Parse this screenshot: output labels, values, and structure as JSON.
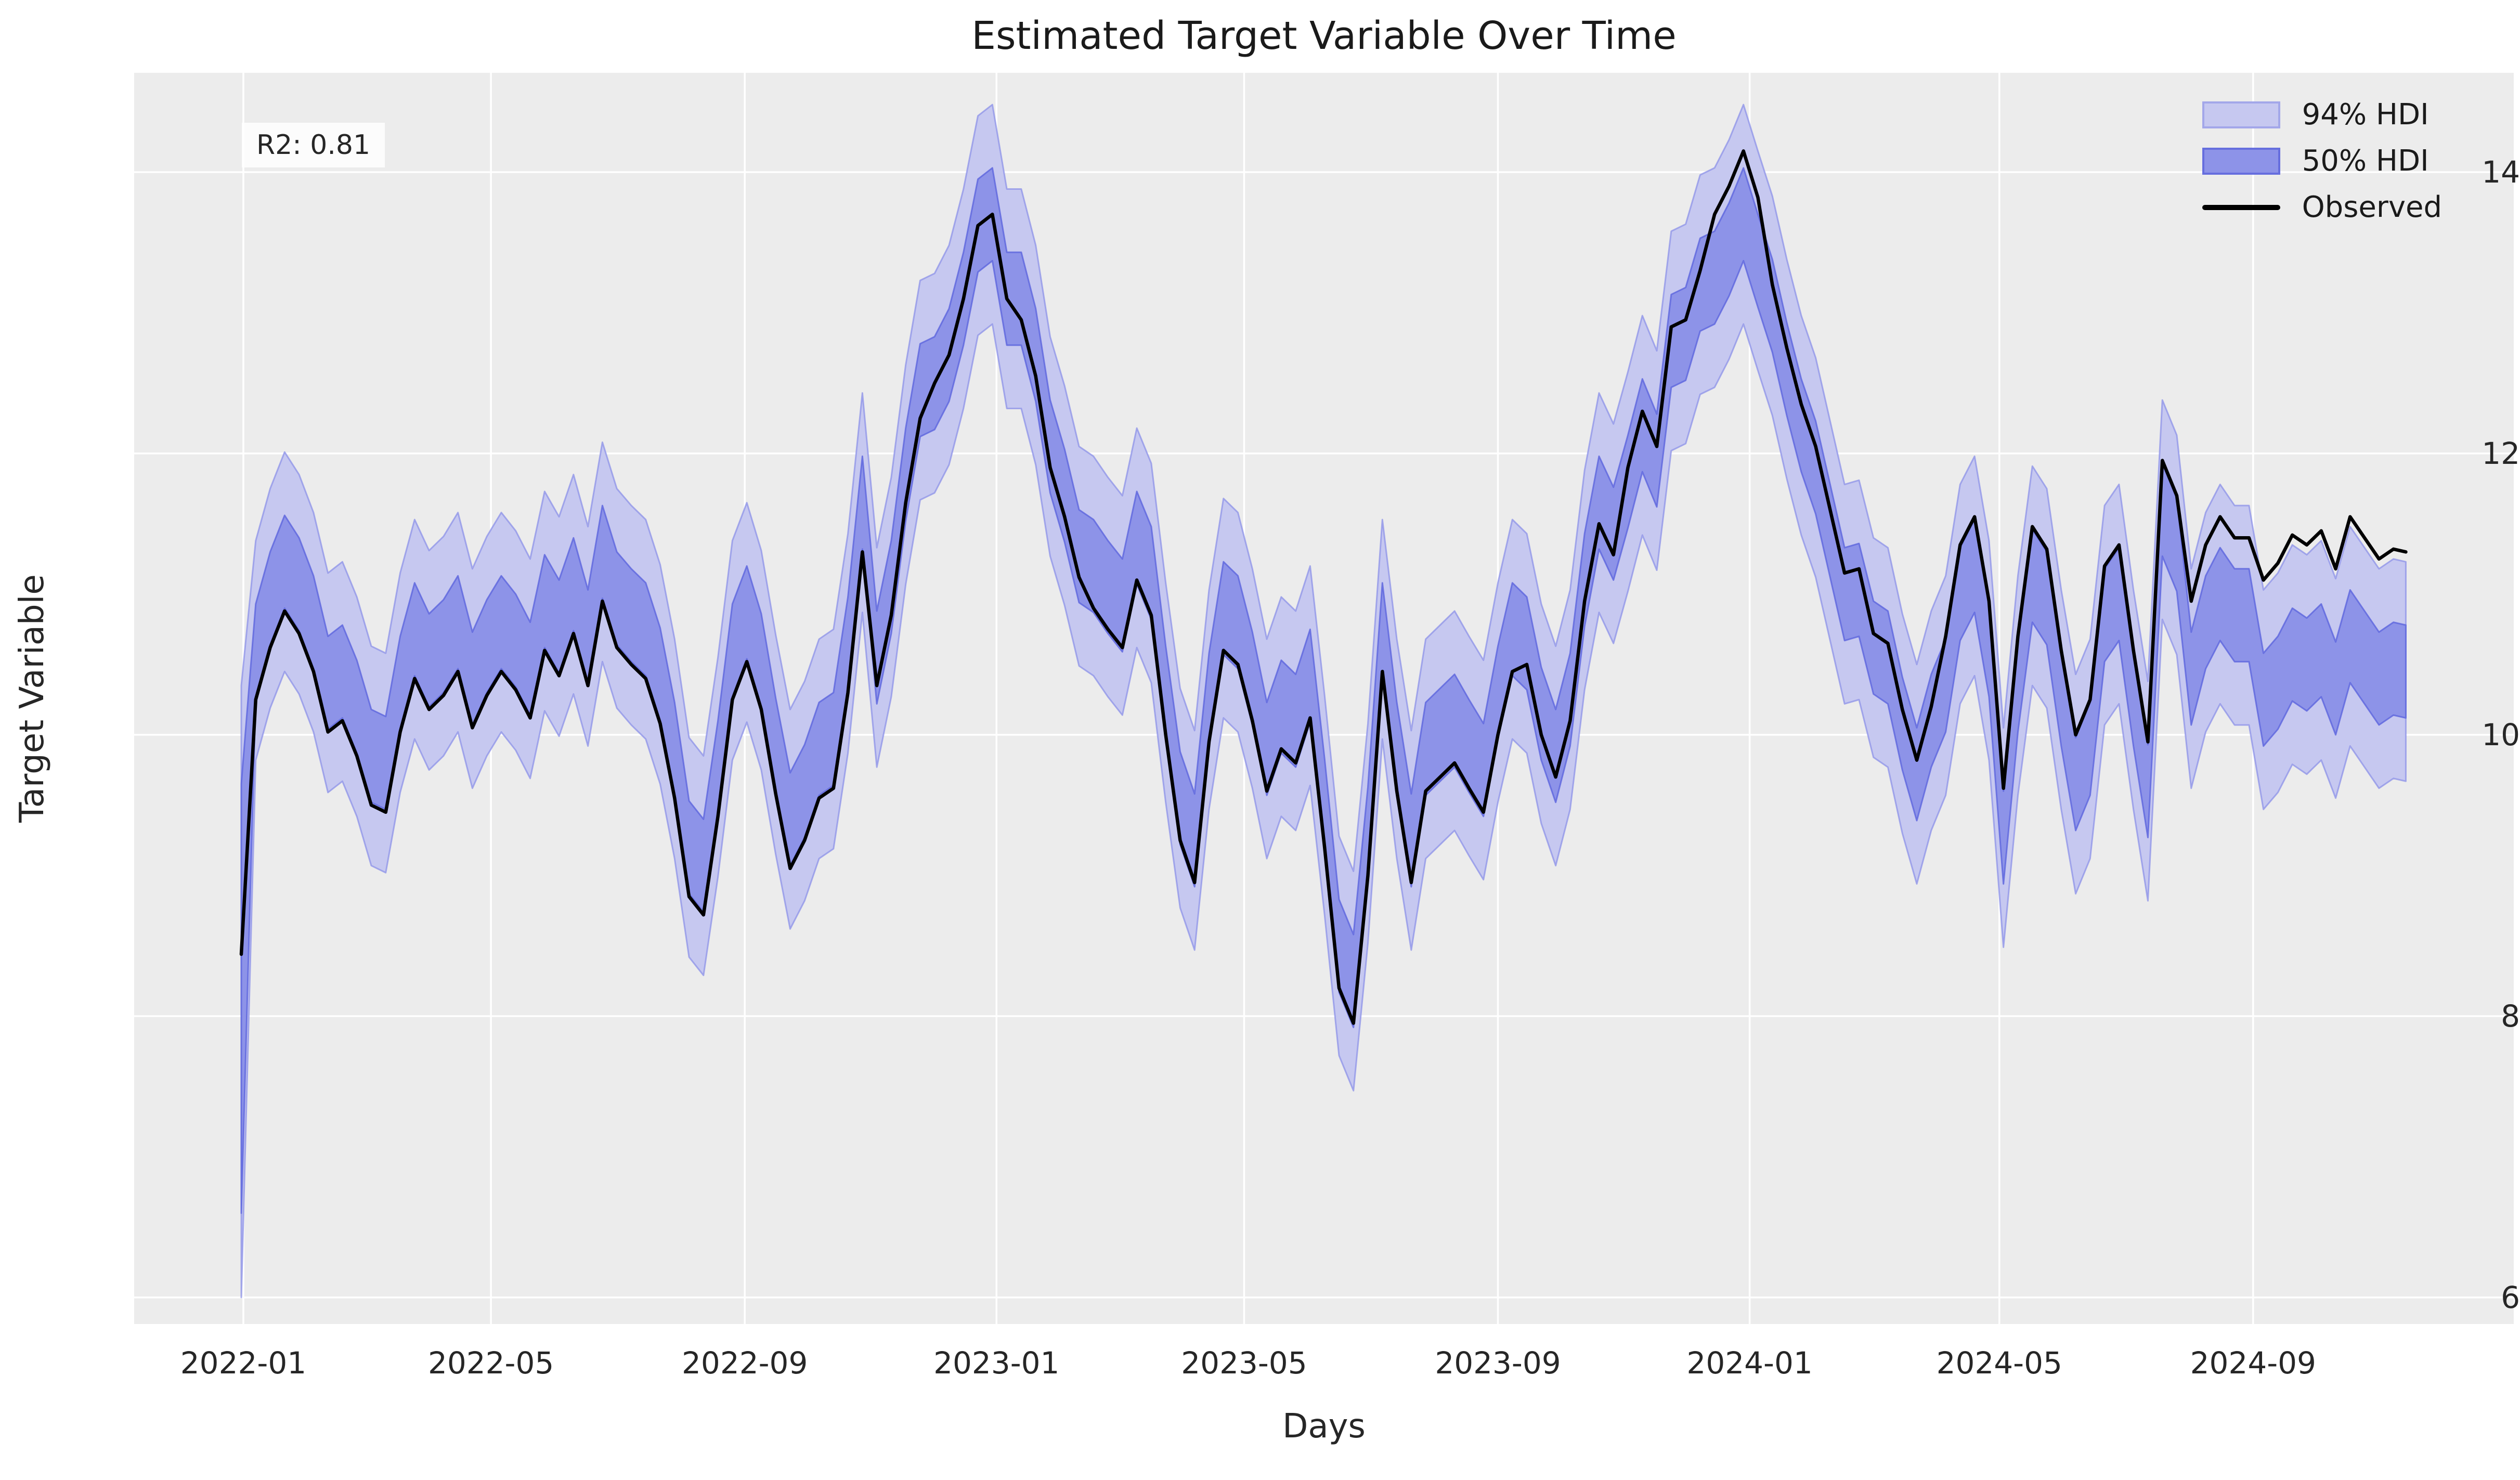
{
  "chart_data": {
    "type": "line",
    "title": "Estimated Target Variable Over Time",
    "xlabel": "Days",
    "ylabel": "Target Variable",
    "annotation": "R2: 0.81",
    "legend": [
      {
        "label": "94% HDI",
        "kind": "band",
        "color": "#c6c8f0"
      },
      {
        "label": "50% HDI",
        "kind": "band",
        "color": "#8d93e8"
      },
      {
        "label": "Observed",
        "kind": "line",
        "color": "#000000"
      }
    ],
    "colors": {
      "plot_background": "#ececec",
      "gridline": "#ffffff",
      "hdi94_fill": "#c6c8f0",
      "hdi94_edge": "rgba(140,145,232,0.75)",
      "hdi50_fill": "#8d93e8",
      "hdi50_edge": "rgba(96,104,222,0.85)",
      "observed_line": "#000000",
      "text": "#262626"
    },
    "x_axis": {
      "tick_labels": [
        "2022-01",
        "2022-05",
        "2022-09",
        "2023-01",
        "2023-05",
        "2023-09",
        "2024-01",
        "2024-05",
        "2024-09"
      ],
      "tick_days": [
        1,
        121,
        244,
        366,
        486,
        609,
        731,
        852,
        975
      ],
      "start_date": "2021-12-31",
      "end_date": "2024-11-14",
      "sampling_interval_days": 7,
      "last_point_day": 1049
    },
    "y_axis": {
      "ticks": [
        6,
        8,
        10,
        12,
        14
      ],
      "ylim": [
        5.81,
        14.71
      ]
    },
    "grid": true,
    "legend_position": "upper right",
    "observed": [
      8.44,
      10.25,
      10.62,
      10.88,
      10.72,
      10.45,
      10.02,
      10.1,
      9.85,
      9.5,
      9.45,
      10.02,
      10.4,
      10.18,
      10.28,
      10.45,
      10.05,
      10.28,
      10.45,
      10.32,
      10.12,
      10.6,
      10.42,
      10.72,
      10.35,
      10.95,
      10.62,
      10.5,
      10.4,
      10.08,
      9.55,
      8.85,
      8.72,
      9.42,
      10.25,
      10.52,
      10.18,
      9.58,
      9.05,
      9.25,
      9.55,
      9.62,
      10.3,
      11.3,
      10.35,
      10.85,
      11.65,
      12.25,
      12.5,
      12.7,
      13.1,
      13.62,
      13.7,
      13.1,
      12.95,
      12.55,
      11.9,
      11.55,
      11.12,
      10.9,
      10.75,
      10.62,
      11.1,
      10.85,
      10.0,
      9.25,
      8.95,
      9.95,
      10.6,
      10.5,
      10.1,
      9.6,
      9.9,
      9.8,
      10.12,
      9.2,
      8.2,
      7.95,
      9.0,
      10.45,
      9.6,
      8.95,
      9.6,
      9.7,
      9.8,
      9.62,
      9.45,
      10.0,
      10.45,
      10.5,
      10.0,
      9.7,
      10.1,
      10.95,
      11.5,
      11.28,
      11.9,
      12.3,
      12.05,
      12.9,
      12.95,
      13.3,
      13.7,
      13.9,
      14.15,
      13.82,
      13.2,
      12.75,
      12.35,
      12.05,
      11.6,
      11.15,
      11.18,
      10.72,
      10.65,
      10.18,
      9.82,
      10.2,
      10.7,
      11.35,
      11.55,
      10.95,
      9.62,
      10.7,
      11.48,
      11.32,
      10.6,
      10.0,
      10.25,
      11.2,
      11.35,
      10.6,
      9.95,
      11.95,
      11.7,
      10.95,
      11.35,
      11.55,
      11.4,
      11.4,
      11.1,
      11.22,
      11.42,
      11.35,
      11.45,
      11.18,
      11.55,
      11.4,
      11.25,
      11.32,
      11.3
    ],
    "hdi_bands": {
      "description": "Band center = observed + segment offset; hdi94 = center ± half_width_94; hdi50 = center ± half_width_50. Index 0 uses explicit first_point intervals.",
      "half_width_94": 0.78,
      "half_width_50": 0.33,
      "first_point": {
        "hdi94": [
          6.0,
          10.35
        ],
        "hdi50": [
          6.6,
          9.65
        ]
      },
      "mean_offset_segments": [
        {
          "start_index": 1,
          "end_index": 43,
          "offset": 0.35
        },
        {
          "start_index": 44,
          "end_index": 47,
          "offset": 0.2
        },
        {
          "start_index": 48,
          "end_index": 53,
          "offset": 0.0
        },
        {
          "start_index": 54,
          "end_index": 58,
          "offset": 0.15
        },
        {
          "start_index": 59,
          "end_index": 88,
          "offset": 0.3
        },
        {
          "start_index": 89,
          "end_index": 95,
          "offset": 0.15
        },
        {
          "start_index": 96,
          "end_index": 101,
          "offset": -0.1
        },
        {
          "start_index": 102,
          "end_index": 105,
          "offset": -0.45
        },
        {
          "start_index": 106,
          "end_index": 112,
          "offset": -0.15
        },
        {
          "start_index": 113,
          "end_index": 117,
          "offset": -0.1
        },
        {
          "start_index": 118,
          "end_index": 134,
          "offset": -0.35
        },
        {
          "start_index": 135,
          "end_index": 139,
          "offset": -0.55
        },
        {
          "start_index": 140,
          "end_index": 150,
          "offset": -0.85
        }
      ]
    }
  }
}
